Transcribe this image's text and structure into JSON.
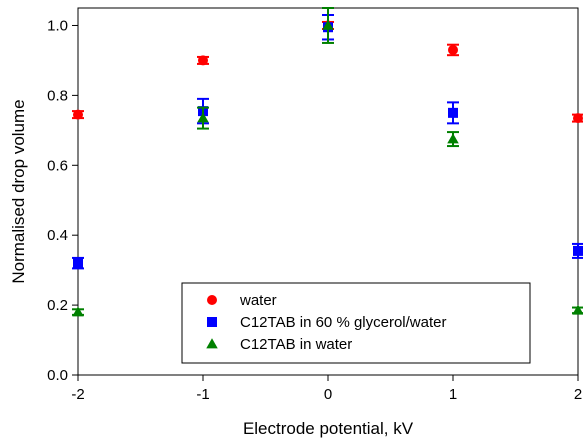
{
  "chart_data": {
    "type": "scatter",
    "title": "",
    "xlabel": "Electrode potential, kV",
    "ylabel": "Normalised drop volume",
    "xlim": [
      -2,
      2
    ],
    "ylim": [
      0,
      1.05
    ],
    "x_ticks": [
      -2,
      -1,
      0,
      1,
      2
    ],
    "x_tick_labels": [
      "-2",
      "-1",
      "0",
      "1",
      "2"
    ],
    "y_ticks": [
      0,
      0.2,
      0.4,
      0.6,
      0.8,
      1.0
    ],
    "y_tick_labels": [
      "0.0",
      "0.2",
      "0.4",
      "0.6",
      "0.8",
      "1.0"
    ],
    "grid": false,
    "legend_position": "bottom-center",
    "series": [
      {
        "name": "water",
        "marker": "circle",
        "color": "#ff0000",
        "errorbar_color": "#ff0000",
        "points": [
          {
            "x": -2,
            "y": 0.745,
            "err": 0.01
          },
          {
            "x": -1,
            "y": 0.9,
            "err": 0.01
          },
          {
            "x": 0,
            "y": 1.0,
            "err": 0.01
          },
          {
            "x": 1,
            "y": 0.93,
            "err": 0.015
          },
          {
            "x": 2,
            "y": 0.735,
            "err": 0.01
          }
        ]
      },
      {
        "name": "C12TAB in 60 % glycerol/water",
        "marker": "square",
        "color": "#0000ff",
        "errorbar_color": "#0000ff",
        "points": [
          {
            "x": -2,
            "y": 0.32,
            "err": 0.015
          },
          {
            "x": -1,
            "y": 0.755,
            "err": 0.035
          },
          {
            "x": 0,
            "y": 0.995,
            "err": 0.035
          },
          {
            "x": 1,
            "y": 0.75,
            "err": 0.03
          },
          {
            "x": 2,
            "y": 0.355,
            "err": 0.02
          }
        ]
      },
      {
        "name": "C12TAB in water",
        "marker": "triangle",
        "color": "#008000",
        "errorbar_color": "#008000",
        "points": [
          {
            "x": -2,
            "y": 0.18,
            "err": 0.008
          },
          {
            "x": -1,
            "y": 0.735,
            "err": 0.03
          },
          {
            "x": 0,
            "y": 1.0,
            "err": 0.05
          },
          {
            "x": 1,
            "y": 0.675,
            "err": 0.02
          },
          {
            "x": 2,
            "y": 0.185,
            "err": 0.008
          }
        ]
      }
    ]
  }
}
